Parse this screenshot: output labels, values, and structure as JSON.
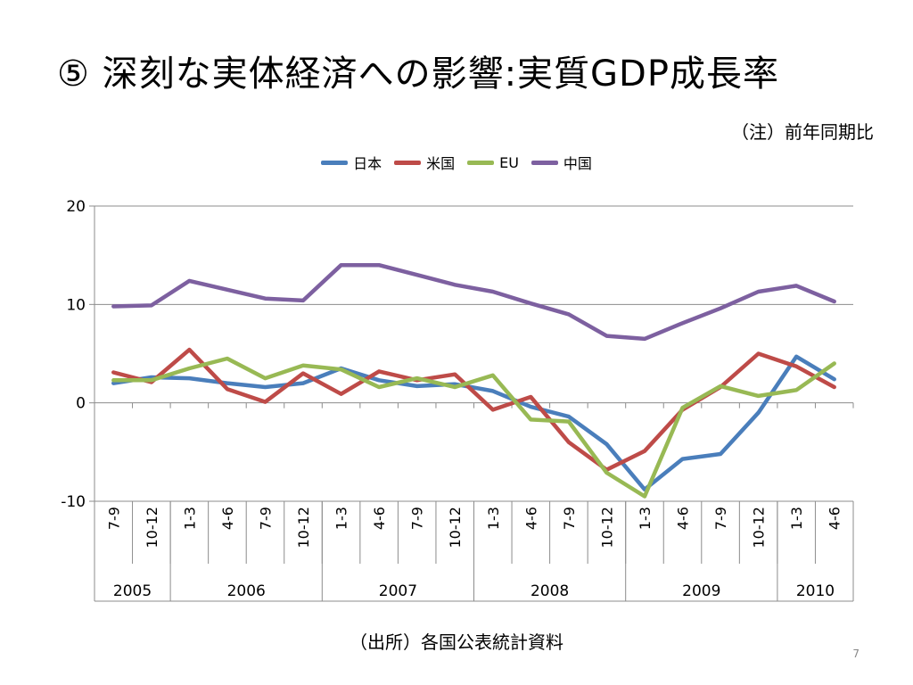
{
  "title": "⑤ 深刻な実体経済への影響:実質GDP成長率",
  "note": "（注）前年同期比",
  "source": "（出所）各国公表統計資料",
  "page_number": "7",
  "chart_data": {
    "type": "line",
    "ylim": [
      -10,
      20
    ],
    "yticks": [
      20,
      10,
      0,
      -10
    ],
    "grid": true,
    "legend_position": "top",
    "categories": [
      "7-9",
      "10-12",
      "1-3",
      "4-6",
      "7-9",
      "10-12",
      "1-3",
      "4-6",
      "7-9",
      "10-12",
      "1-3",
      "4-6",
      "7-9",
      "10-12",
      "1-3",
      "4-6",
      "7-9",
      "10-12",
      "1-3",
      "4-6"
    ],
    "year_groups": [
      {
        "label": "2005",
        "count": 2
      },
      {
        "label": "2006",
        "count": 4
      },
      {
        "label": "2007",
        "count": 4
      },
      {
        "label": "2008",
        "count": 4
      },
      {
        "label": "2009",
        "count": 4
      },
      {
        "label": "2010",
        "count": 2
      }
    ],
    "series": [
      {
        "name": "日本",
        "color": "#4a7ebb",
        "values": [
          2.0,
          2.6,
          2.5,
          2.0,
          1.6,
          2.0,
          3.5,
          2.3,
          1.7,
          1.9,
          1.2,
          -0.4,
          -1.4,
          -4.2,
          -8.8,
          -5.7,
          -5.2,
          -1.0,
          4.7,
          2.4
        ]
      },
      {
        "name": "米国",
        "color": "#be4b48",
        "values": [
          3.1,
          2.1,
          5.4,
          1.4,
          0.1,
          3.0,
          0.9,
          3.2,
          2.3,
          2.9,
          -0.7,
          0.6,
          -4.0,
          -6.8,
          -4.9,
          -0.7,
          1.6,
          5.0,
          3.7,
          1.6
        ]
      },
      {
        "name": "EU",
        "color": "#98b954",
        "values": [
          2.3,
          2.3,
          3.5,
          4.5,
          2.5,
          3.8,
          3.4,
          1.6,
          2.5,
          1.6,
          2.8,
          -1.7,
          -1.9,
          -7.1,
          -9.5,
          -0.5,
          1.7,
          0.7,
          1.3,
          4.0
        ]
      },
      {
        "name": "中国",
        "color": "#7d60a0",
        "values": [
          9.8,
          9.9,
          12.4,
          11.5,
          10.6,
          10.4,
          14.0,
          14.0,
          13.0,
          12.0,
          11.3,
          10.1,
          9.0,
          6.8,
          6.5,
          8.1,
          9.6,
          11.3,
          11.9,
          10.3
        ]
      }
    ]
  }
}
